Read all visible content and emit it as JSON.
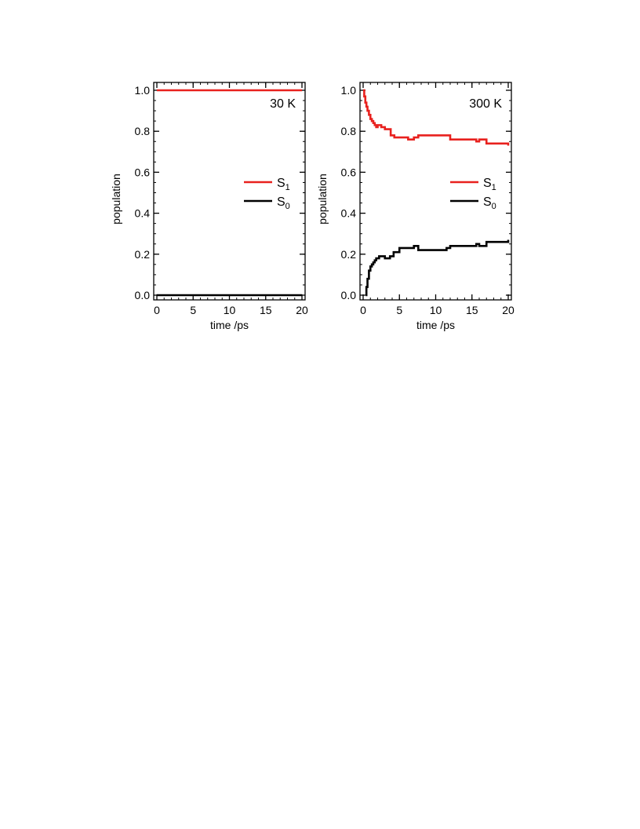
{
  "chart_data": [
    {
      "type": "line",
      "annotation": "30 K",
      "xlabel": "time /ps",
      "ylabel": "population",
      "xlim": [
        0,
        20
      ],
      "ylim": [
        0,
        1
      ],
      "x_ticks": [
        0,
        5,
        10,
        15,
        20
      ],
      "y_ticks": [
        0.0,
        0.2,
        0.4,
        0.6,
        0.8,
        1.0
      ],
      "x_tick_labels": [
        "0",
        "5",
        "10",
        "15",
        "20"
      ],
      "y_tick_labels": [
        "0.0",
        "0.2",
        "0.4",
        "0.6",
        "0.8",
        "1.0"
      ],
      "legend_position": "right",
      "series": [
        {
          "name": "S1",
          "label_main": "S",
          "label_sub": "1",
          "color": "#e8211e",
          "x": [
            0,
            20
          ],
          "y": [
            1.0,
            1.0
          ]
        },
        {
          "name": "S0",
          "label_main": "S",
          "label_sub": "0",
          "color": "#000000",
          "x": [
            0,
            20
          ],
          "y": [
            0.0,
            0.0
          ]
        }
      ]
    },
    {
      "type": "line",
      "annotation": "300 K",
      "xlabel": "time  /ps",
      "ylabel": "population",
      "xlim": [
        0,
        20
      ],
      "ylim": [
        0,
        1
      ],
      "x_ticks": [
        0,
        5,
        10,
        15,
        20
      ],
      "y_ticks": [
        0.0,
        0.2,
        0.4,
        0.6,
        0.8,
        1.0
      ],
      "x_tick_labels": [
        "0",
        "5",
        "10",
        "15",
        "20"
      ],
      "y_tick_labels": [
        "0.0",
        "0.2",
        "0.4",
        "0.6",
        "0.8",
        "1.0"
      ],
      "legend_position": "right",
      "series": [
        {
          "name": "S1",
          "label_main": "S",
          "label_sub": "1",
          "color": "#e8211e",
          "x": [
            0,
            0.15,
            0.3,
            0.45,
            0.6,
            0.8,
            1.0,
            1.2,
            1.4,
            1.6,
            1.8,
            2.0,
            2.5,
            3.0,
            3.8,
            4.3,
            5.0,
            6.2,
            7.0,
            7.6,
            9.0,
            10.0,
            12.0,
            13.0,
            15.0,
            15.6,
            16.0,
            17.0,
            19.5,
            20.0
          ],
          "y": [
            1.0,
            0.97,
            0.94,
            0.92,
            0.9,
            0.88,
            0.86,
            0.85,
            0.84,
            0.83,
            0.82,
            0.83,
            0.82,
            0.81,
            0.78,
            0.77,
            0.77,
            0.76,
            0.77,
            0.78,
            0.78,
            0.78,
            0.76,
            0.76,
            0.76,
            0.75,
            0.76,
            0.74,
            0.74,
            0.73
          ]
        },
        {
          "name": "S0",
          "label_main": "S",
          "label_sub": "0",
          "color": "#000000",
          "x": [
            0.35,
            0.45,
            0.6,
            0.8,
            1.0,
            1.2,
            1.4,
            1.6,
            1.8,
            2.2,
            3.0,
            3.7,
            4.2,
            5.0,
            6.2,
            7.0,
            7.6,
            9.0,
            10.0,
            11.5,
            12.0,
            13.5,
            15.0,
            15.6,
            16.0,
            17.0,
            19.5,
            20.0
          ],
          "y": [
            0.0,
            0.04,
            0.08,
            0.12,
            0.14,
            0.15,
            0.16,
            0.17,
            0.18,
            0.19,
            0.18,
            0.19,
            0.21,
            0.23,
            0.23,
            0.24,
            0.22,
            0.22,
            0.22,
            0.23,
            0.24,
            0.24,
            0.24,
            0.25,
            0.24,
            0.26,
            0.26,
            0.27
          ]
        }
      ]
    }
  ]
}
